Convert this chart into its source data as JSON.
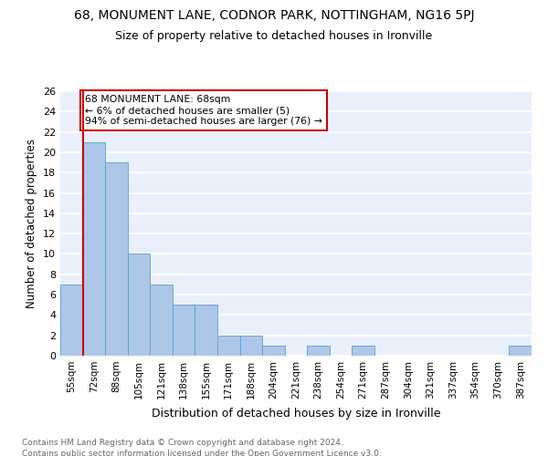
{
  "title": "68, MONUMENT LANE, CODNOR PARK, NOTTINGHAM, NG16 5PJ",
  "subtitle": "Size of property relative to detached houses in Ironville",
  "xlabel": "Distribution of detached houses by size in Ironville",
  "ylabel": "Number of detached properties",
  "footnote1": "Contains HM Land Registry data © Crown copyright and database right 2024.",
  "footnote2": "Contains public sector information licensed under the Open Government Licence v3.0.",
  "categories": [
    "55sqm",
    "72sqm",
    "88sqm",
    "105sqm",
    "121sqm",
    "138sqm",
    "155sqm",
    "171sqm",
    "188sqm",
    "204sqm",
    "221sqm",
    "238sqm",
    "254sqm",
    "271sqm",
    "287sqm",
    "304sqm",
    "321sqm",
    "337sqm",
    "354sqm",
    "370sqm",
    "387sqm"
  ],
  "values": [
    7,
    21,
    19,
    10,
    7,
    5,
    5,
    2,
    2,
    1,
    0,
    1,
    0,
    1,
    0,
    0,
    0,
    0,
    0,
    0,
    1
  ],
  "bar_color": "#aec6e8",
  "bar_edge_color": "#5a9fd4",
  "property_line_x": 0.5,
  "annotation_line1": "68 MONUMENT LANE: 68sqm",
  "annotation_line2": "← 6% of detached houses are smaller (5)",
  "annotation_line3": "94% of semi-detached houses are larger (76) →",
  "annotation_box_color": "#ffffff",
  "annotation_box_edge": "#cc0000",
  "red_line_color": "#cc0000",
  "ylim": [
    0,
    26
  ],
  "yticks": [
    0,
    2,
    4,
    6,
    8,
    10,
    12,
    14,
    16,
    18,
    20,
    22,
    24,
    26
  ],
  "bg_color": "#eaf0fb",
  "grid_color": "#ffffff",
  "title_fontsize": 10,
  "subtitle_fontsize": 9,
  "footnote_color": "#666666"
}
